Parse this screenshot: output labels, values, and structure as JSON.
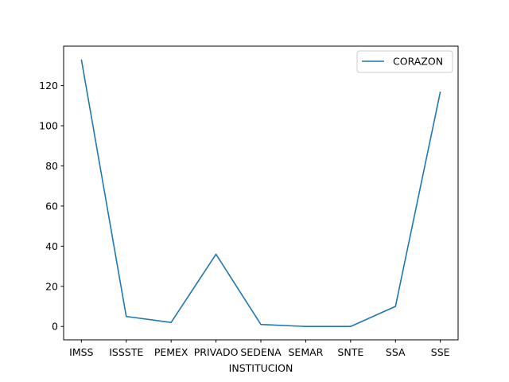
{
  "chart_data": {
    "type": "line",
    "title": "",
    "xlabel": "INSTITUCION",
    "ylabel": "",
    "categories": [
      "IMSS",
      "ISSSTE",
      "PEMEX",
      "PRIVADO",
      "SEDENA",
      "SEMAR",
      "SNTE",
      "SSA",
      "SSE"
    ],
    "series": [
      {
        "name": "CORAZON",
        "values": [
          133,
          5,
          2,
          36,
          1,
          0,
          0,
          10,
          117
        ],
        "color": "#1f77b4"
      }
    ],
    "ylim": [
      -6.65,
      139.65
    ],
    "yticks": [
      0,
      20,
      40,
      60,
      80,
      100,
      120
    ],
    "grid": false,
    "legend": "top-right"
  }
}
